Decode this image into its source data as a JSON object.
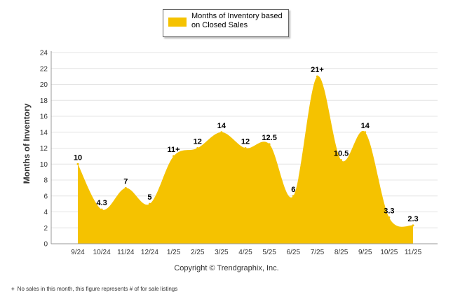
{
  "chart_data": {
    "type": "area",
    "title": "",
    "xlabel": "",
    "ylabel": "Months of Inventory",
    "ylim": [
      0,
      24
    ],
    "yticks": [
      0,
      2,
      4,
      6,
      8,
      10,
      12,
      14,
      16,
      18,
      20,
      22,
      24
    ],
    "categories": [
      "9/24",
      "10/24",
      "11/24",
      "12/24",
      "1/25",
      "2/25",
      "3/25",
      "4/25",
      "5/25",
      "6/25",
      "7/25",
      "8/25",
      "9/25",
      "10/25",
      "11/25"
    ],
    "series": [
      {
        "name": "Months of Inventory based on Closed Sales",
        "color": "#F5C200",
        "values": [
          10,
          4.3,
          7,
          5,
          11,
          12,
          14,
          12,
          12.5,
          6,
          21,
          10.5,
          14,
          3.3,
          2.3
        ],
        "labels": [
          "10",
          "4.3",
          "7",
          "5",
          "11+",
          "12",
          "14",
          "12",
          "12.5",
          "6",
          "21+",
          "10.5",
          "14",
          "3.3",
          "2.3"
        ]
      }
    ],
    "legend": {
      "position": "top-center",
      "label": "Months of Inventory based on Closed Sales"
    },
    "grid": true
  },
  "copyright": "Copyright © Trendgraphix, Inc.",
  "footnote": {
    "mark": "+",
    "text": "No sales in this month, this figure represents # of for sale listings"
  }
}
